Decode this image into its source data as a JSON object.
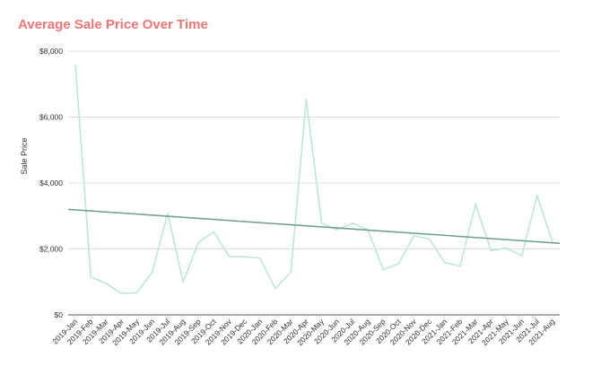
{
  "chart_data": {
    "type": "line",
    "title": "Average Sale Price Over Time",
    "ylabel": "Sale Price",
    "xlabel": "",
    "ylim": [
      0,
      8000
    ],
    "yticks": [
      "$0",
      "$2,000",
      "$4,000",
      "$6,000",
      "$8,000"
    ],
    "grid": true,
    "categories": [
      "2019-Jan",
      "2019-Feb",
      "2019-Mar",
      "2019-Apr",
      "2019-May",
      "2019-Jun",
      "2019-Jul",
      "2019-Aug",
      "2019-Sep",
      "2019-Oct",
      "2019-Nov",
      "2019-Dec",
      "2020-Jan",
      "2020-Feb",
      "2020-Mar",
      "2020-Apr",
      "2020-May",
      "2020-Jun",
      "2020-Jul",
      "2020-Aug",
      "2020-Sep",
      "2020-Oct",
      "2020-Nov",
      "2020-Dec",
      "2021-Jan",
      "2021-Feb",
      "2021-Mar",
      "2021-Apr",
      "2021-May",
      "2021-Jun",
      "2021-Jul",
      "2021-Aug"
    ],
    "series": [
      {
        "values": [
          7600,
          1150,
          950,
          650,
          670,
          1300,
          3080,
          1000,
          2200,
          2520,
          1770,
          1760,
          1720,
          800,
          1300,
          6550,
          2780,
          2580,
          2780,
          2580,
          1370,
          1550,
          2400,
          2300,
          1580,
          1480,
          3350,
          1950,
          2030,
          1800,
          3620,
          2200
        ],
        "color": "#b9e7d0"
      }
    ],
    "trendline": {
      "start": 3200,
      "end": 2170,
      "color": "#6b9e88"
    },
    "title_color": "#f07575"
  }
}
